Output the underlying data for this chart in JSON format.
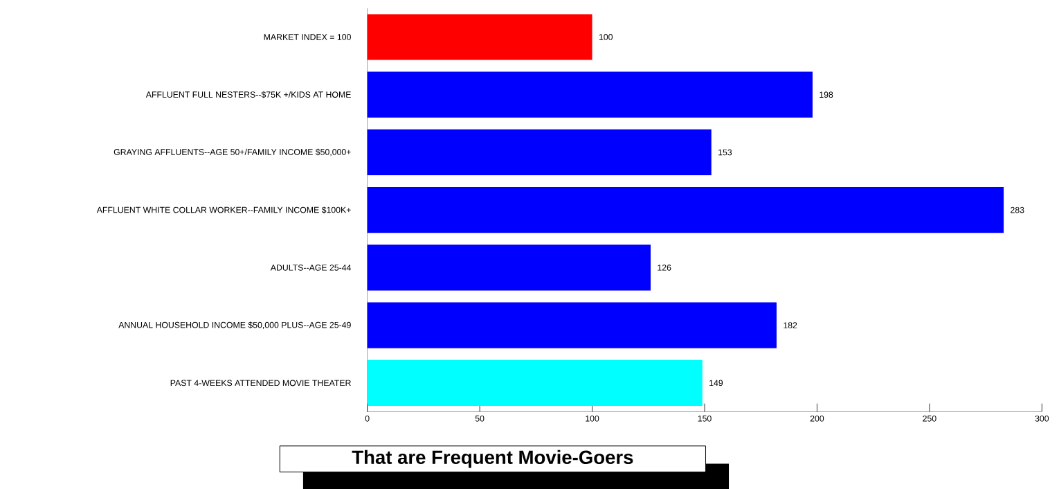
{
  "chart_data": {
    "type": "bar",
    "orientation": "horizontal",
    "title": "That are Frequent Movie-Goers",
    "categories": [
      "MARKET INDEX = 100",
      "AFFLUENT FULL NESTERS--$75K +/KIDS AT HOME",
      "GRAYING AFFLUENTS--AGE 50+/FAMILY INCOME $50,000+",
      "AFFLUENT WHITE COLLAR WORKER--FAMILY INCOME $100K+",
      "ADULTS--AGE 25-44",
      "ANNUAL HOUSEHOLD INCOME $50,000 PLUS--AGE 25-49",
      "PAST 4-WEEKS ATTENDED MOVIE THEATER"
    ],
    "values": [
      100,
      198,
      153,
      283,
      126,
      182,
      149
    ],
    "colors": [
      "#ff0000",
      "#0000ff",
      "#0000ff",
      "#0000ff",
      "#0000ff",
      "#0000ff",
      "#00ffff"
    ],
    "xlim": [
      0,
      300
    ],
    "xticks": [
      0,
      50,
      100,
      150,
      200,
      250,
      300
    ],
    "data_labels": true
  }
}
